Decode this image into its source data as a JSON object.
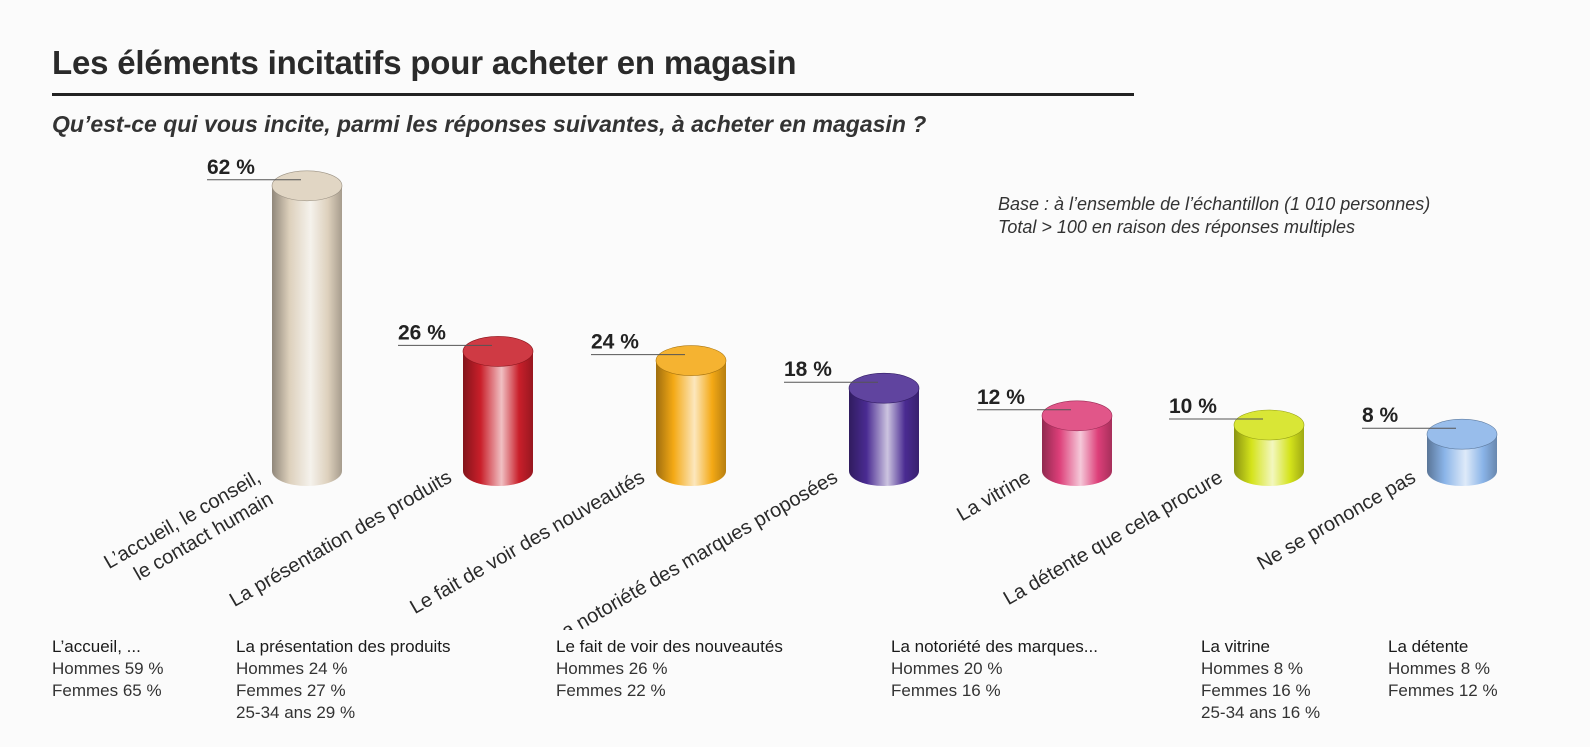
{
  "header": {
    "title": "Les éléments incitatifs pour acheter en magasin",
    "question": "Qu’est-ce qui vous incite, parmi les réponses suivantes, à acheter en magasin ?"
  },
  "base_note": [
    "Base : à l’ensemble de l’échantillon (1 010 personnes)",
    "Total > 100 en raison des réponses multiples"
  ],
  "chart_data": {
    "type": "bar",
    "title": "Les éléments incitatifs pour acheter en magasin",
    "subtitle": "Qu’est-ce qui vous incite, parmi les réponses suivantes, à acheter en magasin ?",
    "categories": [
      "L’accueil, le conseil, le contact humain",
      "La présentation des produits",
      "Le fait de voir des nouveautés",
      "La notoriété des marques proposées",
      "La vitrine",
      "La détente que cela procure",
      "Ne se prononce pas"
    ],
    "category_lines": [
      [
        "L’accueil, le conseil,",
        "le contact humain"
      ],
      [
        "La présentation des produits"
      ],
      [
        "Le fait de voir des nouveautés"
      ],
      [
        "La notoriété des marques proposées"
      ],
      [
        "La vitrine"
      ],
      [
        "La détente que cela procure"
      ],
      [
        "Ne se prononce pas"
      ]
    ],
    "values": [
      62,
      26,
      24,
      18,
      12,
      10,
      8
    ],
    "value_labels": [
      "62 %",
      "26 %",
      "24 %",
      "18 %",
      "12 %",
      "10 %",
      "8 %"
    ],
    "unit": "%",
    "colors": [
      "#ddd0bc",
      "#c91f2a",
      "#f4a915",
      "#4a2b92",
      "#dd3f79",
      "#d4e31b",
      "#8ab4e8"
    ],
    "ylim": [
      0,
      62
    ],
    "grid": false,
    "legend": "none"
  },
  "breakdowns": [
    {
      "title": "L’accueil, ...",
      "lines": [
        "Hommes 59 %",
        "Femmes 65 %"
      ]
    },
    {
      "title": "La présentation des produits",
      "lines": [
        "Hommes 24 %",
        "Femmes 27 %",
        "25-34 ans 29 %"
      ]
    },
    {
      "title": "Le fait de voir des nouveautés",
      "lines": [
        "Hommes 26 %",
        "Femmes 22 %"
      ]
    },
    {
      "title": "La notoriété des marques...",
      "lines": [
        "Hommes 20 %",
        "Femmes 16 %"
      ]
    },
    {
      "title": "La vitrine",
      "lines": [
        "Hommes 8 %",
        "Femmes 16 %",
        "25-34 ans 16 %"
      ]
    },
    {
      "title": "La détente",
      "lines": [
        "Hommes 8 %",
        "Femmes 12 %"
      ]
    }
  ]
}
